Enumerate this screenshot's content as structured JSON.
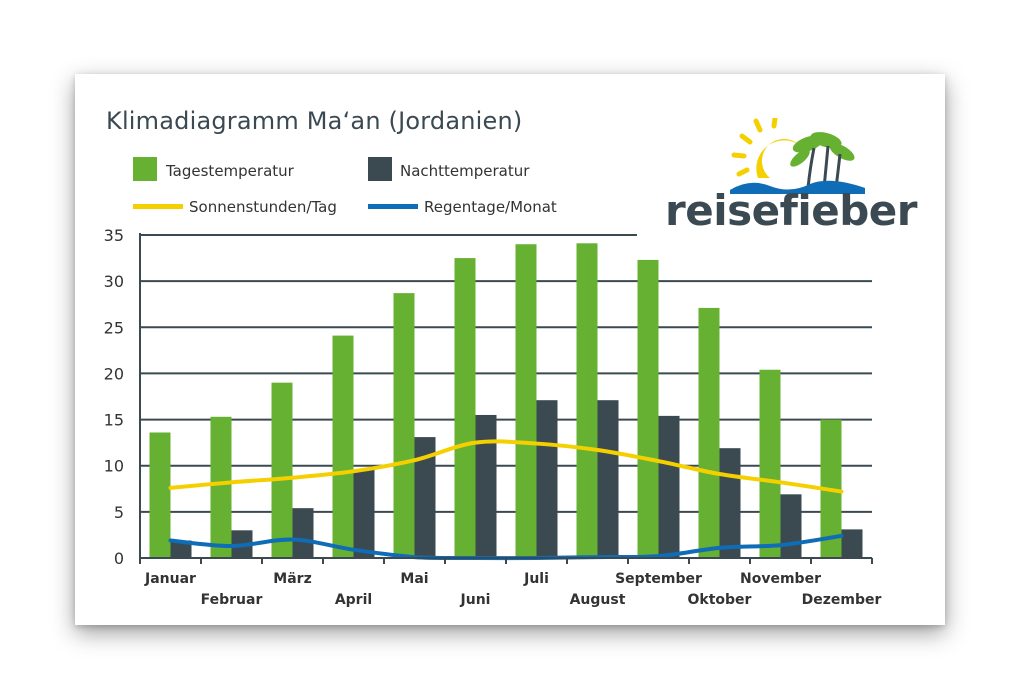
{
  "chart_data": {
    "type": "bar",
    "title": "Klimadiagramm Ma‘an (Jordanien)",
    "categories": [
      "Januar",
      "Februar",
      "März",
      "April",
      "Mai",
      "Juni",
      "Juli",
      "August",
      "September",
      "Oktober",
      "November",
      "Dezember"
    ],
    "series": [
      {
        "name": "Tagestemperatur",
        "kind": "bar",
        "color": "#66b032",
        "values": [
          13.6,
          15.3,
          19.0,
          24.1,
          28.7,
          32.5,
          34.0,
          34.1,
          32.3,
          27.1,
          20.4,
          15.0
        ]
      },
      {
        "name": "Nachttemperatur",
        "kind": "bar",
        "color": "#3a4a50",
        "values": [
          1.9,
          3.0,
          5.4,
          9.6,
          13.1,
          15.5,
          17.1,
          17.1,
          15.4,
          11.9,
          6.9,
          3.1
        ]
      },
      {
        "name": "Sonnenstunden/Tag",
        "kind": "line",
        "color": "#f5d000",
        "values": [
          7.6,
          8.2,
          8.7,
          9.4,
          10.6,
          12.5,
          12.4,
          11.7,
          10.5,
          9.1,
          8.2,
          7.2
        ]
      },
      {
        "name": "Regentage/Monat",
        "kind": "line",
        "color": "#0f6cb6",
        "values": [
          1.9,
          1.3,
          2.0,
          0.9,
          0.1,
          0.0,
          0.0,
          0.1,
          0.2,
          1.1,
          1.4,
          2.4
        ]
      }
    ],
    "yticks": [
      0,
      5,
      10,
      15,
      20,
      25,
      30,
      35
    ],
    "ylim": [
      0,
      35
    ],
    "xlabel": "",
    "ylabel": "",
    "grid": true,
    "legend": "top-left"
  },
  "logo": {
    "text": "reisefieber"
  }
}
